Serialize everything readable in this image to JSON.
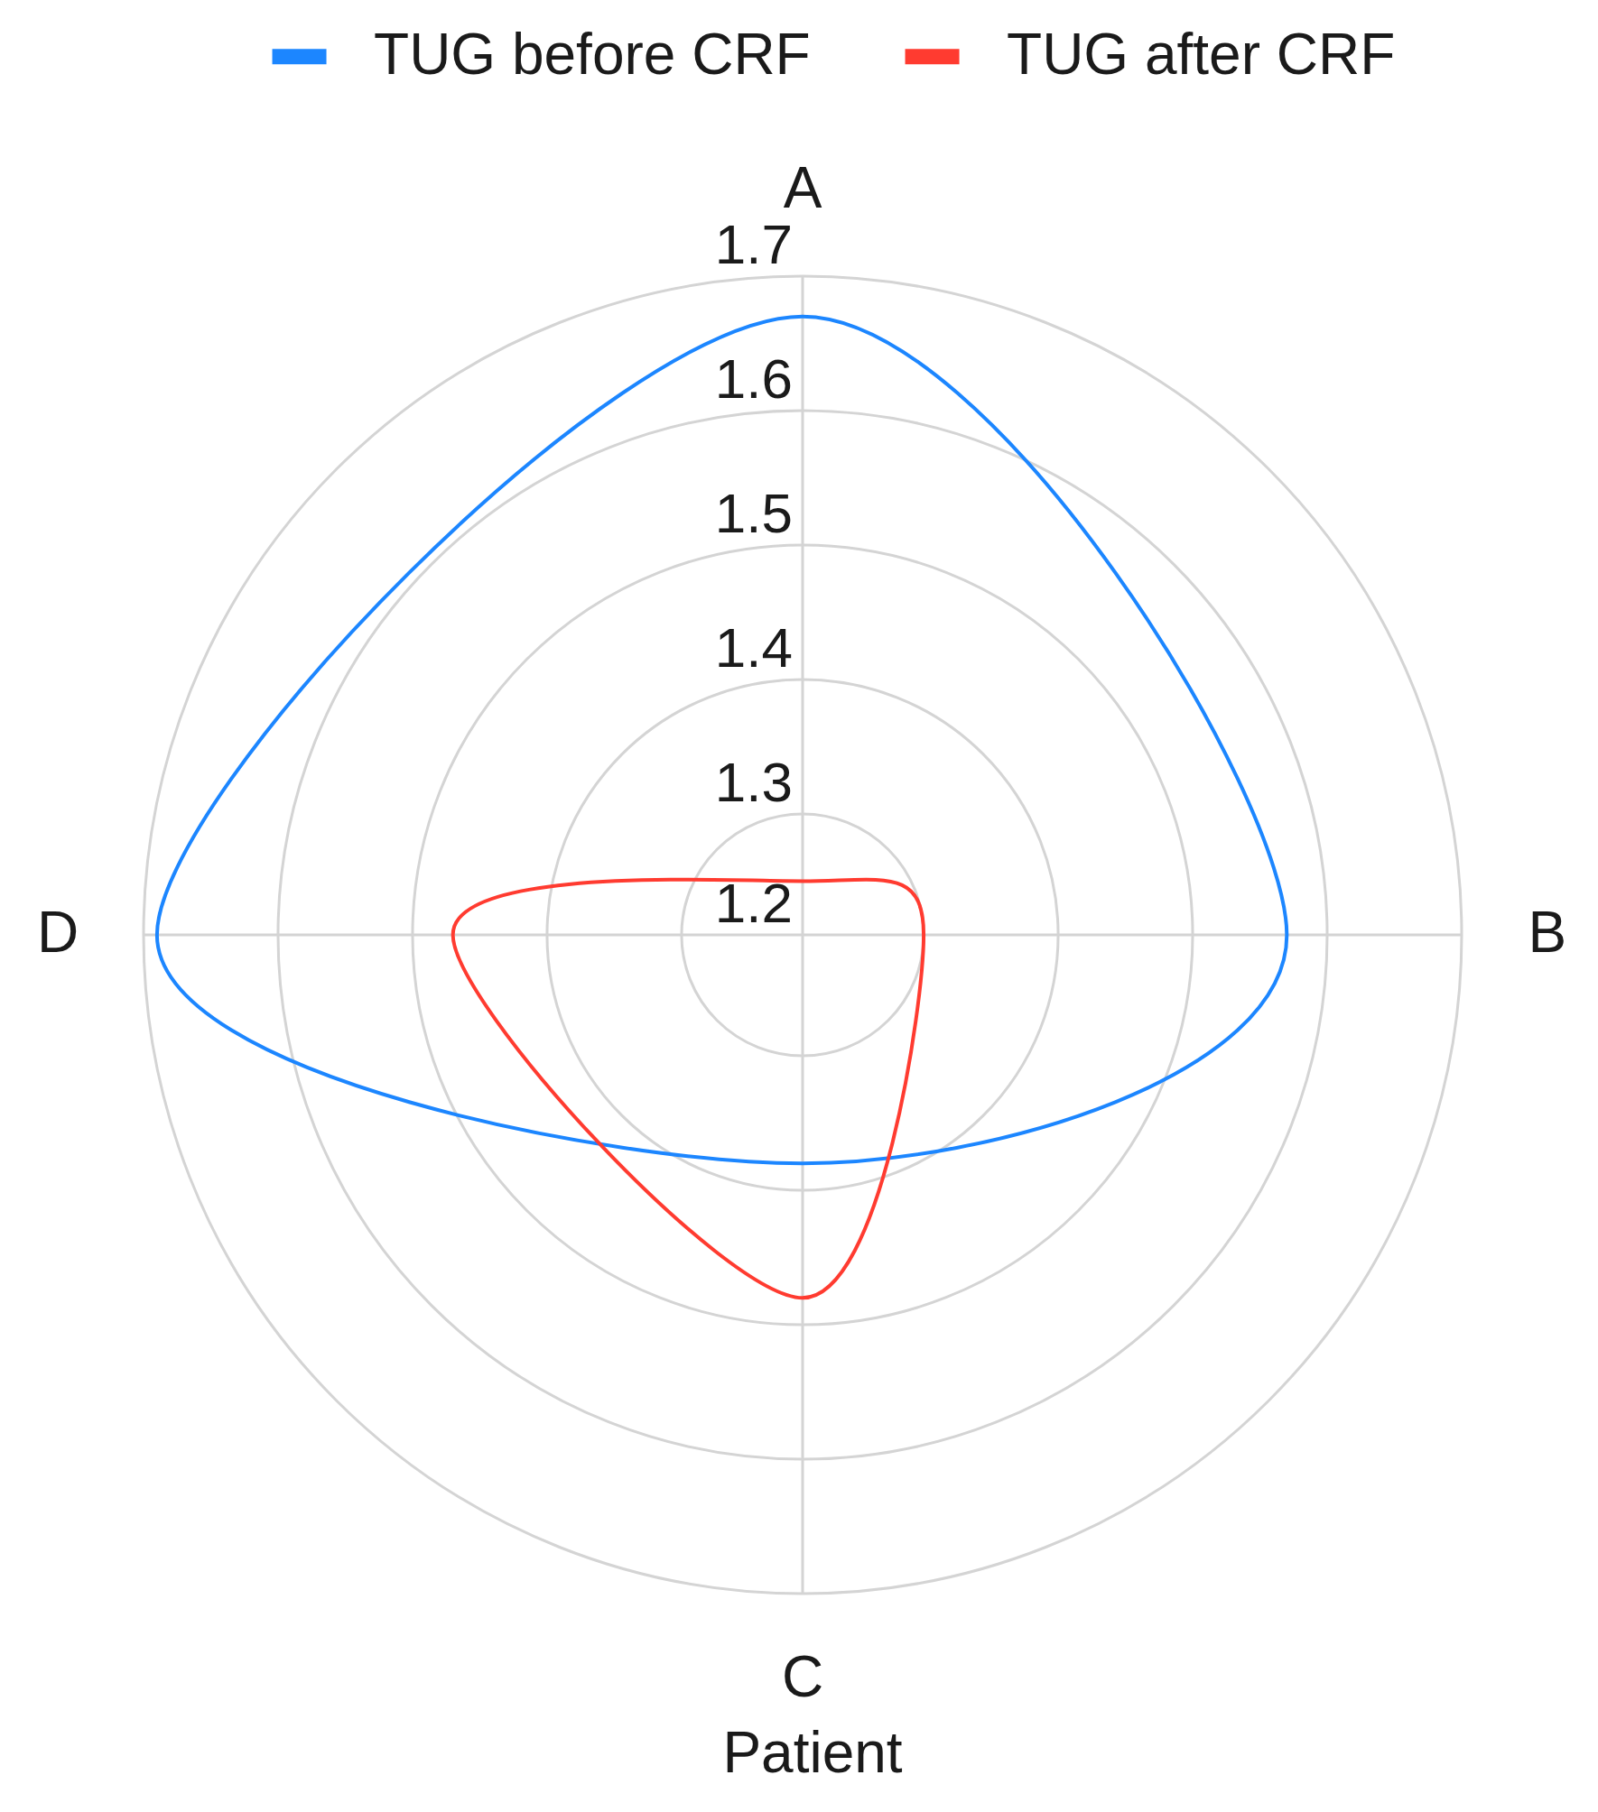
{
  "chart_data": {
    "type": "radar",
    "categories": [
      "A",
      "B",
      "C",
      "D"
    ],
    "xlabel": "Patient",
    "series": [
      {
        "name": "TUG before CRF",
        "color": "#1c86ff",
        "values": [
          1.67,
          1.57,
          1.38,
          1.69
        ]
      },
      {
        "name": "TUG after CRF",
        "color": "#ff3b30",
        "values": [
          1.25,
          1.3,
          1.48,
          1.47
        ]
      }
    ],
    "ylim": [
      1.21,
      1.7
    ],
    "yticks": [
      {
        "value": 1.21,
        "label": "1.2"
      },
      1.3,
      1.4,
      1.5,
      1.6,
      1.7
    ],
    "grid": true,
    "legend": "top"
  }
}
